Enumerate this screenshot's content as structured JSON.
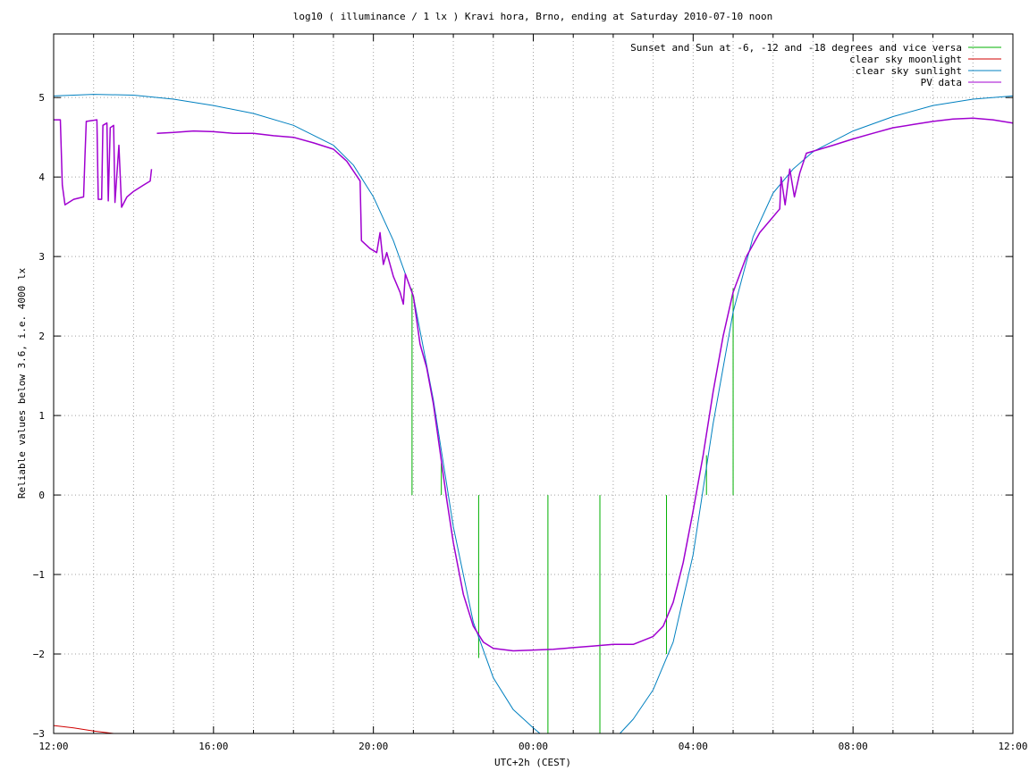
{
  "chart_data": {
    "type": "line",
    "title": "log10 ( illuminance / 1 lx ) Kravi hora, Brno, ending at Saturday 2010-07-10 noon",
    "xlabel": "UTC+2h (CEST)",
    "ylabel": "Reliable values below 3.6, i.e. 4000 lx",
    "xlim": [
      "2010-07-09 12:00",
      "2010-07-10 12:00"
    ],
    "ylim": [
      -3,
      5.8
    ],
    "grid": true,
    "legend_position": "top-right",
    "x_ticks": [
      "12:00",
      "16:00",
      "20:00",
      "00:00",
      "04:00",
      "08:00",
      "12:00"
    ],
    "y_ticks": [
      -3,
      -2,
      -1,
      0,
      1,
      2,
      3,
      4,
      5
    ],
    "series": [
      {
        "name": "Sunset and Sun at -6, -12 and -18 degrees and vice versa",
        "color": "#00b000",
        "style": "impulses",
        "points": [
          {
            "x": "2010-07-09 20:58",
            "y": 2.6
          },
          {
            "x": "2010-07-09 21:42",
            "y": 0.4
          },
          {
            "x": "2010-07-09 22:38",
            "y": -2.05
          },
          {
            "x": "2010-07-10 00:22",
            "y": -3
          },
          {
            "x": "2010-07-10 01:40",
            "y": -3
          },
          {
            "x": "2010-07-10 03:20",
            "y": -2.0
          },
          {
            "x": "2010-07-10 04:20",
            "y": 0.5
          },
          {
            "x": "2010-07-10 05:00",
            "y": 2.6
          }
        ]
      },
      {
        "name": "clear sky moonlight",
        "color": "#d00000",
        "points": [
          {
            "x": "2010-07-09 12:00",
            "y": -2.9
          },
          {
            "x": "2010-07-09 12:30",
            "y": -2.93
          },
          {
            "x": "2010-07-09 13:00",
            "y": -2.97
          },
          {
            "x": "2010-07-09 13:30",
            "y": -3.0
          }
        ]
      },
      {
        "name": "clear sky sunlight",
        "color": "#0080c0",
        "points": [
          {
            "x": "2010-07-09 12:00",
            "y": 5.02
          },
          {
            "x": "2010-07-09 13:00",
            "y": 5.04
          },
          {
            "x": "2010-07-09 14:00",
            "y": 5.03
          },
          {
            "x": "2010-07-09 15:00",
            "y": 4.98
          },
          {
            "x": "2010-07-09 16:00",
            "y": 4.9
          },
          {
            "x": "2010-07-09 17:00",
            "y": 4.8
          },
          {
            "x": "2010-07-09 18:00",
            "y": 4.65
          },
          {
            "x": "2010-07-09 19:00",
            "y": 4.4
          },
          {
            "x": "2010-07-09 19:30",
            "y": 4.15
          },
          {
            "x": "2010-07-09 20:00",
            "y": 3.75
          },
          {
            "x": "2010-07-09 20:30",
            "y": 3.2
          },
          {
            "x": "2010-07-09 21:00",
            "y": 2.5
          },
          {
            "x": "2010-07-09 21:30",
            "y": 1.2
          },
          {
            "x": "2010-07-09 22:00",
            "y": -0.4
          },
          {
            "x": "2010-07-09 22:30",
            "y": -1.6
          },
          {
            "x": "2010-07-09 23:00",
            "y": -2.3
          },
          {
            "x": "2010-07-09 23:30",
            "y": -2.7
          },
          {
            "x": "2010-07-10 00:00",
            "y": -2.93
          },
          {
            "x": "2010-07-10 00:10",
            "y": -3.0
          },
          {
            "x": "2010-07-10 02:10",
            "y": -3.0
          },
          {
            "x": "2010-07-10 02:30",
            "y": -2.82
          },
          {
            "x": "2010-07-10 03:00",
            "y": -2.45
          },
          {
            "x": "2010-07-10 03:30",
            "y": -1.85
          },
          {
            "x": "2010-07-10 04:00",
            "y": -0.75
          },
          {
            "x": "2010-07-10 04:30",
            "y": 0.9
          },
          {
            "x": "2010-07-10 05:00",
            "y": 2.3
          },
          {
            "x": "2010-07-10 05:30",
            "y": 3.25
          },
          {
            "x": "2010-07-10 06:00",
            "y": 3.8
          },
          {
            "x": "2010-07-10 06:30",
            "y": 4.1
          },
          {
            "x": "2010-07-10 07:00",
            "y": 4.32
          },
          {
            "x": "2010-07-10 08:00",
            "y": 4.58
          },
          {
            "x": "2010-07-10 09:00",
            "y": 4.76
          },
          {
            "x": "2010-07-10 10:00",
            "y": 4.9
          },
          {
            "x": "2010-07-10 11:00",
            "y": 4.98
          },
          {
            "x": "2010-07-10 12:00",
            "y": 5.02
          }
        ]
      },
      {
        "name": "PV data",
        "color": "#a000d0",
        "segments": [
          [
            {
              "x": "2010-07-09 12:00",
              "y": 4.72
            },
            {
              "x": "2010-07-09 12:10",
              "y": 4.72
            },
            {
              "x": "2010-07-09 12:13",
              "y": 3.9
            },
            {
              "x": "2010-07-09 12:17",
              "y": 3.65
            },
            {
              "x": "2010-07-09 12:30",
              "y": 3.72
            },
            {
              "x": "2010-07-09 12:45",
              "y": 3.75
            },
            {
              "x": "2010-07-09 12:47",
              "y": 4.25
            },
            {
              "x": "2010-07-09 12:49",
              "y": 4.7
            },
            {
              "x": "2010-07-09 13:05",
              "y": 4.72
            },
            {
              "x": "2010-07-09 13:07",
              "y": 3.72
            },
            {
              "x": "2010-07-09 13:12",
              "y": 3.72
            },
            {
              "x": "2010-07-09 13:14",
              "y": 4.65
            },
            {
              "x": "2010-07-09 13:20",
              "y": 4.68
            },
            {
              "x": "2010-07-09 13:22",
              "y": 3.7
            },
            {
              "x": "2010-07-09 13:25",
              "y": 4.62
            },
            {
              "x": "2010-07-09 13:30",
              "y": 4.65
            },
            {
              "x": "2010-07-09 13:32",
              "y": 3.68
            },
            {
              "x": "2010-07-09 13:38",
              "y": 4.4
            },
            {
              "x": "2010-07-09 13:42",
              "y": 3.62
            },
            {
              "x": "2010-07-09 13:50",
              "y": 3.75
            },
            {
              "x": "2010-07-09 14:00",
              "y": 3.82
            },
            {
              "x": "2010-07-09 14:15",
              "y": 3.9
            },
            {
              "x": "2010-07-09 14:25",
              "y": 3.95
            },
            {
              "x": "2010-07-09 14:27",
              "y": 4.1
            }
          ],
          [
            {
              "x": "2010-07-09 14:35",
              "y": 4.55
            },
            {
              "x": "2010-07-09 15:00",
              "y": 4.56
            },
            {
              "x": "2010-07-09 15:30",
              "y": 4.58
            },
            {
              "x": "2010-07-09 16:00",
              "y": 4.57
            },
            {
              "x": "2010-07-09 16:30",
              "y": 4.55
            },
            {
              "x": "2010-07-09 17:00",
              "y": 4.55
            },
            {
              "x": "2010-07-09 17:30",
              "y": 4.52
            },
            {
              "x": "2010-07-09 18:00",
              "y": 4.5
            },
            {
              "x": "2010-07-09 18:30",
              "y": 4.43
            },
            {
              "x": "2010-07-09 19:00",
              "y": 4.35
            },
            {
              "x": "2010-07-09 19:20",
              "y": 4.2
            },
            {
              "x": "2010-07-09 19:40",
              "y": 3.95
            },
            {
              "x": "2010-07-09 19:42",
              "y": 3.2
            },
            {
              "x": "2010-07-09 19:55",
              "y": 3.1
            },
            {
              "x": "2010-07-09 20:05",
              "y": 3.05
            },
            {
              "x": "2010-07-09 20:10",
              "y": 3.3
            },
            {
              "x": "2010-07-09 20:15",
              "y": 2.9
            },
            {
              "x": "2010-07-09 20:20",
              "y": 3.05
            },
            {
              "x": "2010-07-09 20:30",
              "y": 2.75
            },
            {
              "x": "2010-07-09 20:40",
              "y": 2.55
            },
            {
              "x": "2010-07-09 20:45",
              "y": 2.4
            },
            {
              "x": "2010-07-09 20:48",
              "y": 2.78
            },
            {
              "x": "2010-07-09 21:00",
              "y": 2.5
            },
            {
              "x": "2010-07-09 21:10",
              "y": 1.9
            },
            {
              "x": "2010-07-09 21:20",
              "y": 1.6
            },
            {
              "x": "2010-07-09 21:30",
              "y": 1.15
            },
            {
              "x": "2010-07-09 21:40",
              "y": 0.55
            },
            {
              "x": "2010-07-09 21:50",
              "y": -0.05
            },
            {
              "x": "2010-07-09 22:00",
              "y": -0.6
            },
            {
              "x": "2010-07-09 22:15",
              "y": -1.25
            },
            {
              "x": "2010-07-09 22:30",
              "y": -1.65
            },
            {
              "x": "2010-07-09 22:45",
              "y": -1.85
            },
            {
              "x": "2010-07-09 23:00",
              "y": -1.93
            },
            {
              "x": "2010-07-09 23:30",
              "y": -1.96
            },
            {
              "x": "2010-07-10 00:00",
              "y": -1.95
            },
            {
              "x": "2010-07-10 00:30",
              "y": -1.94
            },
            {
              "x": "2010-07-10 01:00",
              "y": -1.92
            },
            {
              "x": "2010-07-10 01:30",
              "y": -1.9
            },
            {
              "x": "2010-07-10 02:00",
              "y": -1.88
            },
            {
              "x": "2010-07-10 02:30",
              "y": -1.88
            },
            {
              "x": "2010-07-10 03:00",
              "y": -1.78
            },
            {
              "x": "2010-07-10 03:15",
              "y": -1.65
            },
            {
              "x": "2010-07-10 03:30",
              "y": -1.35
            },
            {
              "x": "2010-07-10 03:45",
              "y": -0.85
            },
            {
              "x": "2010-07-10 04:00",
              "y": -0.2
            },
            {
              "x": "2010-07-10 04:15",
              "y": 0.5
            },
            {
              "x": "2010-07-10 04:30",
              "y": 1.3
            },
            {
              "x": "2010-07-10 04:45",
              "y": 2.0
            },
            {
              "x": "2010-07-10 05:00",
              "y": 2.55
            },
            {
              "x": "2010-07-10 05:20",
              "y": 3.0
            },
            {
              "x": "2010-07-10 05:40",
              "y": 3.3
            },
            {
              "x": "2010-07-10 06:00",
              "y": 3.5
            },
            {
              "x": "2010-07-10 06:10",
              "y": 3.6
            },
            {
              "x": "2010-07-10 06:12",
              "y": 4.0
            },
            {
              "x": "2010-07-10 06:18",
              "y": 3.65
            },
            {
              "x": "2010-07-10 06:25",
              "y": 4.1
            },
            {
              "x": "2010-07-10 06:32",
              "y": 3.75
            },
            {
              "x": "2010-07-10 06:40",
              "y": 4.05
            },
            {
              "x": "2010-07-10 06:50",
              "y": 4.3
            },
            {
              "x": "2010-07-10 07:30",
              "y": 4.4
            },
            {
              "x": "2010-07-10 08:00",
              "y": 4.48
            },
            {
              "x": "2010-07-10 08:30",
              "y": 4.55
            },
            {
              "x": "2010-07-10 09:00",
              "y": 4.62
            },
            {
              "x": "2010-07-10 09:30",
              "y": 4.66
            },
            {
              "x": "2010-07-10 10:00",
              "y": 4.7
            },
            {
              "x": "2010-07-10 10:30",
              "y": 4.73
            },
            {
              "x": "2010-07-10 11:00",
              "y": 4.74
            },
            {
              "x": "2010-07-10 11:30",
              "y": 4.72
            },
            {
              "x": "2010-07-10 12:00",
              "y": 4.68
            }
          ]
        ]
      }
    ]
  }
}
